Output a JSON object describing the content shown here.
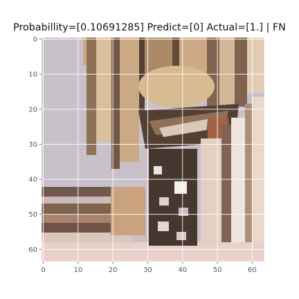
{
  "title": "Probabillity=[0.10691285] Predict=[0] Actual=[1.] | FN",
  "axes": {
    "x_ticks": [
      "0",
      "10",
      "20",
      "30",
      "40",
      "50",
      "60"
    ],
    "y_ticks": [
      "0",
      "10",
      "20",
      "30",
      "40",
      "50",
      "60"
    ],
    "grid": true
  },
  "image": {
    "content": "pixelated crop of a patterned textile / basket weave with diagonal stripes",
    "colors": {
      "background_lavender": "#c9c0c8",
      "tan": "#c9a57e",
      "dark_brown": "#4b3628",
      "mid_brown": "#8a6a50",
      "cream": "#e8dccf",
      "rust": "#a05a3a",
      "light_pink": "#e6cfc8",
      "white": "#f4f0ee"
    }
  }
}
